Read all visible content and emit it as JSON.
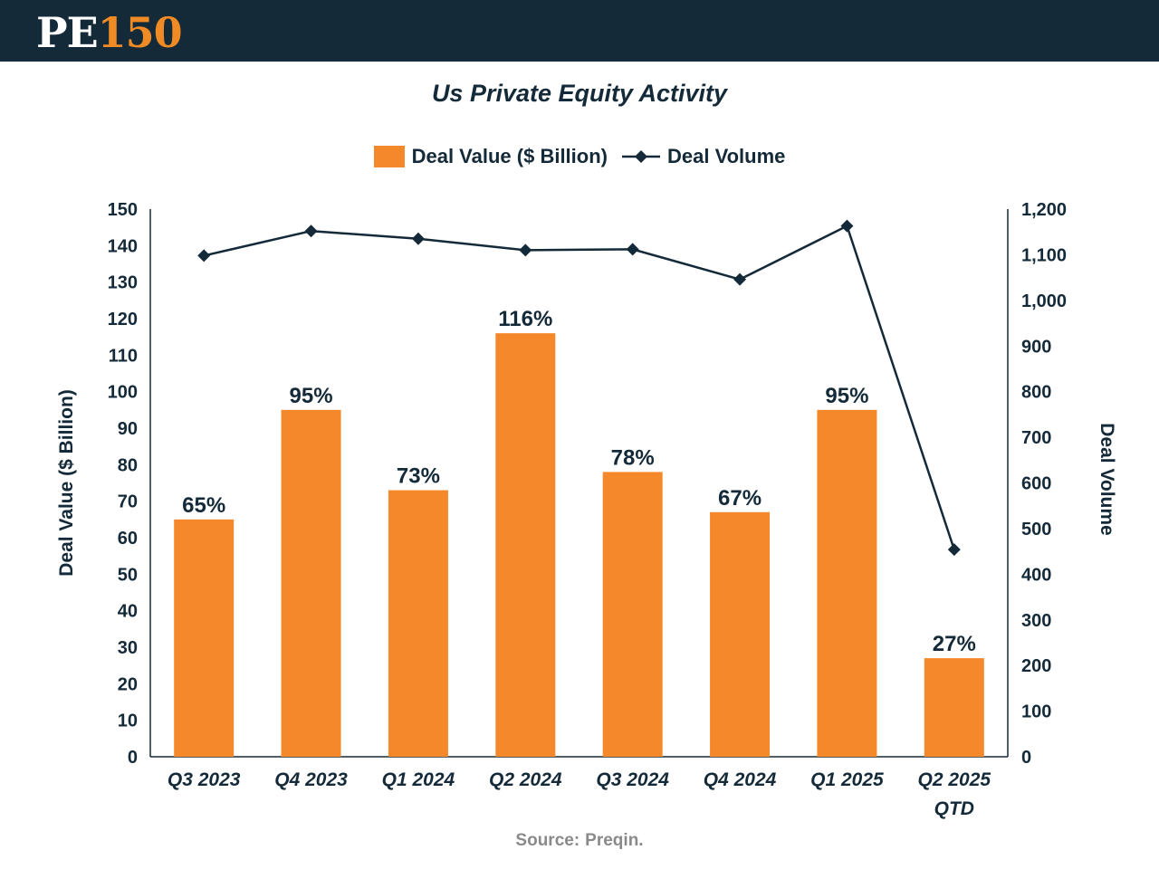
{
  "header": {
    "logo_part1": "PE",
    "logo_part2": "150"
  },
  "chart_data": {
    "type": "bar",
    "title": "Us Private Equity Activity",
    "categories": [
      "Q3 2023",
      "Q4 2023",
      "Q1 2024",
      "Q2 2024",
      "Q3 2024",
      "Q4 2024",
      "Q1 2025",
      "Q2 2025|QTD"
    ],
    "series": [
      {
        "name": "Deal Value ($ Billion)",
        "type": "bar",
        "axis": "left",
        "values": [
          65,
          95,
          73,
          116,
          78,
          67,
          95,
          27
        ],
        "data_labels": [
          "65%",
          "95%",
          "73%",
          "116%",
          "78%",
          "67%",
          "95%",
          "27%"
        ],
        "color": "#f5882a"
      },
      {
        "name": "Deal Volume",
        "type": "line",
        "axis": "right",
        "values": [
          1098,
          1152,
          1135,
          1110,
          1112,
          1046,
          1163,
          454
        ],
        "color": "#142a39"
      }
    ],
    "ylabel": "Deal Value ($ Billion)",
    "ylabel_right": "Deal Volume",
    "ylim": [
      0,
      150
    ],
    "ylim_right": [
      0,
      1200
    ],
    "yticks": [
      "0",
      "10",
      "20",
      "30",
      "40",
      "50",
      "60",
      "70",
      "80",
      "90",
      "100",
      "110",
      "120",
      "130",
      "140",
      "150"
    ],
    "yticks_right": [
      "0",
      "100",
      "200",
      "300",
      "400",
      "500",
      "600",
      "700",
      "800",
      "900",
      "1,000",
      "1,100",
      "1,200"
    ],
    "legend_position": "top-center"
  },
  "source": {
    "label": "Source:",
    "value": "Preqin."
  }
}
